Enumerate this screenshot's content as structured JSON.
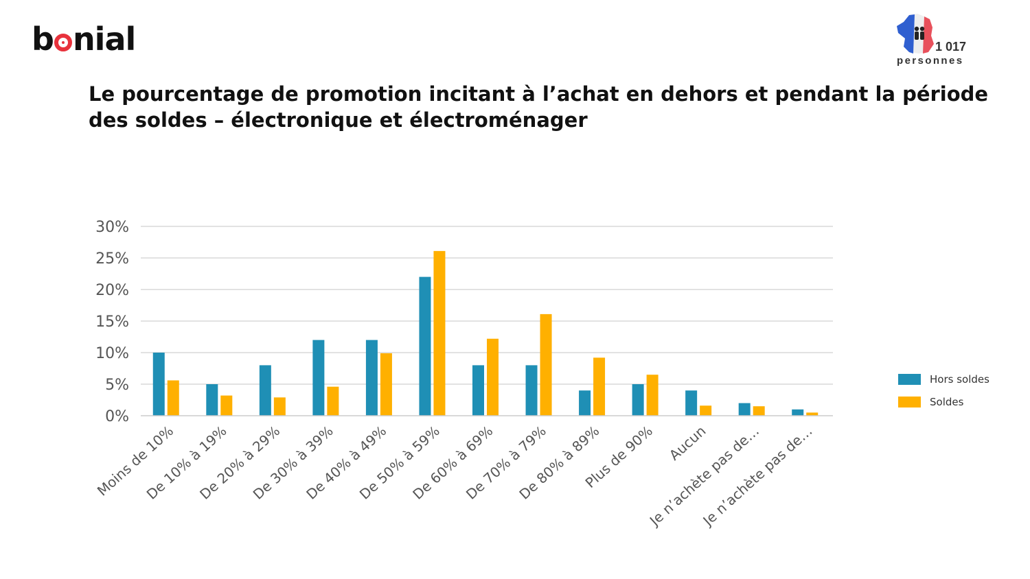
{
  "brand": {
    "logo_before": "b",
    "logo_after": "nial"
  },
  "sample": {
    "count": "1 017",
    "unit": "personnes"
  },
  "chart_data": {
    "type": "bar",
    "title": "Le pourcentage de promotion incitant à l’achat en dehors et pendant la période des soldes – électronique et électroménager",
    "categories": [
      "Moins de 10%",
      "De 10% à 19%",
      "De 20% à 29%",
      "De 30% à 39%",
      "De 40% à 49%",
      "De 50% à 59%",
      "De 60% à 69%",
      "De 70% à 79%",
      "De 80% à 89%",
      "Plus de 90%",
      "Aucun",
      "Je n’achète pas de…",
      "Je n’achète pas de…"
    ],
    "series": [
      {
        "name": "Hors soldes",
        "color": "#1f8fb5",
        "values": [
          10,
          5,
          8,
          12,
          12,
          22,
          8,
          8,
          4,
          5,
          4,
          2,
          1
        ]
      },
      {
        "name": "Soldes",
        "color": "#ffb000",
        "values": [
          5.6,
          3.2,
          2.9,
          4.6,
          9.9,
          26.1,
          12.2,
          16.1,
          9.2,
          6.5,
          1.6,
          1.5,
          0.5
        ]
      }
    ],
    "yticks": [
      "0%",
      "5%",
      "10%",
      "15%",
      "20%",
      "25%",
      "30%"
    ],
    "ylim": [
      0,
      30
    ],
    "xlabel": "",
    "ylabel": "",
    "grid": true,
    "legend": "right"
  }
}
